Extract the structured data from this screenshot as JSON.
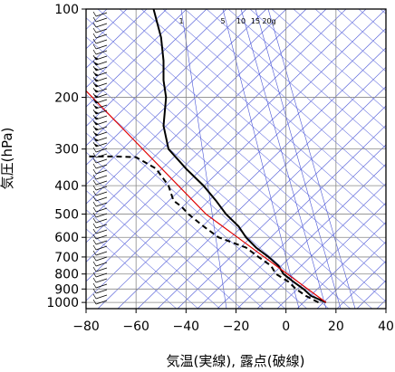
{
  "chart_data": {
    "type": "line",
    "title": "",
    "xlabel": "気温(実線), 露点(破線)",
    "ylabel": "気圧(hPa)",
    "xlim": [
      -80,
      40
    ],
    "ylim": [
      1050,
      100
    ],
    "y_scale": "log",
    "x_ticks": [
      -80,
      -60,
      -40,
      -20,
      0,
      20,
      40
    ],
    "x_tick_labels": [
      "−80",
      "−60",
      "−40",
      "−20",
      "0",
      "20",
      "40"
    ],
    "y_ticks": [
      100,
      200,
      300,
      400,
      500,
      600,
      700,
      800,
      900,
      1000
    ],
    "y_tick_labels": [
      "100",
      "200",
      "300",
      "400",
      "500",
      "600",
      "700",
      "800",
      "900",
      "1000"
    ],
    "mixing_ratio_labels": [
      "1",
      "5",
      "10",
      "15",
      "20g"
    ],
    "grid": true,
    "colors": {
      "temperature": "#000000",
      "dewpoint": "#000000",
      "parcel": "#e00000",
      "skew_isotherms": "#4a55d6",
      "background_lines": "#6a74e0",
      "grid": "#888888",
      "wind_barbs": "#000000"
    },
    "series": [
      {
        "name": "気温",
        "style": "solid",
        "points": [
          [
            16,
            1000
          ],
          [
            10,
            950
          ],
          [
            7,
            900
          ],
          [
            3,
            850
          ],
          [
            -1,
            800
          ],
          [
            -3,
            750
          ],
          [
            -7,
            700
          ],
          [
            -12,
            650
          ],
          [
            -16,
            600
          ],
          [
            -19,
            550
          ],
          [
            -24,
            500
          ],
          [
            -28,
            450
          ],
          [
            -33,
            400
          ],
          [
            -40,
            350
          ],
          [
            -47,
            300
          ],
          [
            -49,
            250
          ],
          [
            -48,
            200
          ],
          [
            -49,
            175
          ],
          [
            -49,
            150
          ],
          [
            -50,
            125
          ],
          [
            -53,
            100
          ]
        ]
      },
      {
        "name": "露点",
        "style": "dashed",
        "points": [
          [
            13,
            1000
          ],
          [
            8,
            950
          ],
          [
            4,
            900
          ],
          [
            1,
            850
          ],
          [
            -4,
            800
          ],
          [
            -6,
            750
          ],
          [
            -11,
            700
          ],
          [
            -16,
            650
          ],
          [
            -27,
            600
          ],
          [
            -33,
            550
          ],
          [
            -39,
            500
          ],
          [
            -42,
            470
          ],
          [
            -45,
            450
          ],
          [
            -47,
            400
          ],
          [
            -52,
            350
          ],
          [
            -60,
            320
          ],
          [
            -68,
            318
          ],
          [
            -82,
            318
          ]
        ]
      },
      {
        "name": "",
        "style": "solid-red",
        "points": [
          [
            16,
            1000
          ],
          [
            -32,
            500
          ],
          [
            -80,
            190
          ]
        ]
      }
    ],
    "wind_barbs_present": true
  }
}
